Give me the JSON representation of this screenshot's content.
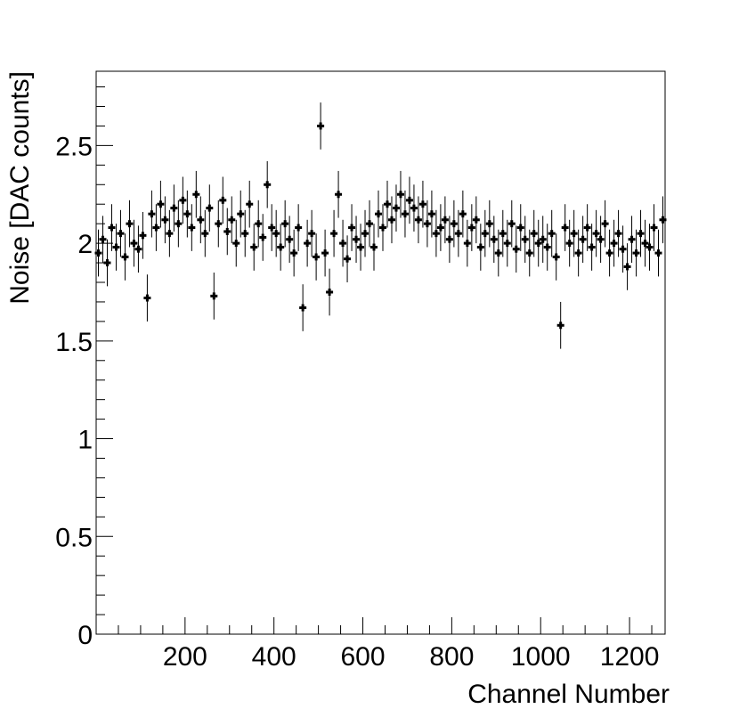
{
  "chart_data": {
    "type": "errorbar",
    "xlabel": "Channel Number",
    "ylabel": "Noise [DAC counts]",
    "xlim": [
      0,
      1280
    ],
    "ylim": [
      0,
      2.88
    ],
    "xticks": [
      200,
      400,
      600,
      800,
      1000,
      1200
    ],
    "yticks": [
      0,
      0.5,
      1,
      1.5,
      2,
      2.5
    ],
    "xminor_ticks": [
      50,
      100,
      150,
      250,
      300,
      350,
      450,
      500,
      550,
      650,
      700,
      750,
      850,
      900,
      950,
      1050,
      1100,
      1150,
      1250
    ],
    "yminor_ticks": [
      0.1,
      0.2,
      0.3,
      0.4,
      0.6,
      0.7,
      0.8,
      0.9,
      1.1,
      1.2,
      1.3,
      1.4,
      1.6,
      1.7,
      1.8,
      1.9,
      2.1,
      2.2,
      2.3,
      2.4,
      2.6,
      2.7,
      2.8
    ],
    "color": "#000000",
    "error": 0.12,
    "x": [
      5,
      15,
      25,
      35,
      45,
      55,
      65,
      75,
      85,
      95,
      105,
      115,
      125,
      135,
      145,
      155,
      165,
      175,
      185,
      195,
      205,
      215,
      225,
      235,
      245,
      255,
      265,
      275,
      285,
      295,
      305,
      315,
      325,
      335,
      345,
      355,
      365,
      375,
      385,
      395,
      405,
      415,
      425,
      435,
      445,
      455,
      465,
      475,
      485,
      495,
      505,
      515,
      525,
      535,
      545,
      555,
      565,
      575,
      585,
      595,
      605,
      615,
      625,
      635,
      645,
      655,
      665,
      675,
      685,
      695,
      705,
      715,
      725,
      735,
      745,
      755,
      765,
      775,
      785,
      795,
      805,
      815,
      825,
      835,
      845,
      855,
      865,
      875,
      885,
      895,
      905,
      915,
      925,
      935,
      945,
      955,
      965,
      975,
      985,
      995,
      1005,
      1015,
      1025,
      1035,
      1045,
      1055,
      1065,
      1075,
      1085,
      1095,
      1105,
      1115,
      1125,
      1135,
      1145,
      1155,
      1165,
      1175,
      1185,
      1195,
      1205,
      1215,
      1225,
      1235,
      1245,
      1255,
      1265,
      1275
    ],
    "values": [
      1.95,
      2.02,
      1.9,
      2.08,
      1.98,
      2.05,
      1.93,
      2.1,
      2.0,
      1.97,
      2.04,
      1.72,
      2.15,
      2.08,
      2.2,
      2.12,
      2.05,
      2.18,
      2.1,
      2.22,
      2.15,
      2.08,
      2.25,
      2.12,
      2.05,
      2.18,
      1.73,
      2.1,
      2.22,
      2.06,
      2.12,
      2.0,
      2.15,
      2.05,
      2.2,
      1.98,
      2.1,
      2.03,
      2.3,
      2.08,
      2.05,
      1.98,
      2.1,
      2.02,
      1.95,
      2.08,
      1.67,
      2.0,
      2.05,
      1.93,
      2.6,
      1.95,
      1.75,
      2.05,
      2.25,
      2.0,
      1.92,
      2.08,
      2.02,
      1.98,
      2.05,
      2.1,
      1.98,
      2.15,
      2.08,
      2.2,
      2.12,
      2.18,
      2.25,
      2.15,
      2.22,
      2.18,
      2.12,
      2.2,
      2.1,
      2.15,
      2.05,
      2.08,
      2.12,
      2.02,
      2.1,
      2.05,
      2.15,
      2.0,
      2.08,
      2.12,
      1.98,
      2.05,
      2.1,
      2.02,
      1.95,
      2.05,
      2.0,
      2.1,
      1.97,
      2.08,
      2.02,
      1.95,
      2.05,
      2.0,
      2.02,
      1.98,
      2.05,
      1.93,
      1.58,
      2.08,
      2.0,
      2.05,
      1.95,
      2.02,
      2.08,
      1.98,
      2.05,
      2.02,
      2.1,
      1.95,
      2.0,
      2.05,
      1.97,
      1.88,
      2.02,
      1.95,
      2.05,
      2.0,
      1.98,
      2.08,
      1.95,
      2.12
    ]
  }
}
